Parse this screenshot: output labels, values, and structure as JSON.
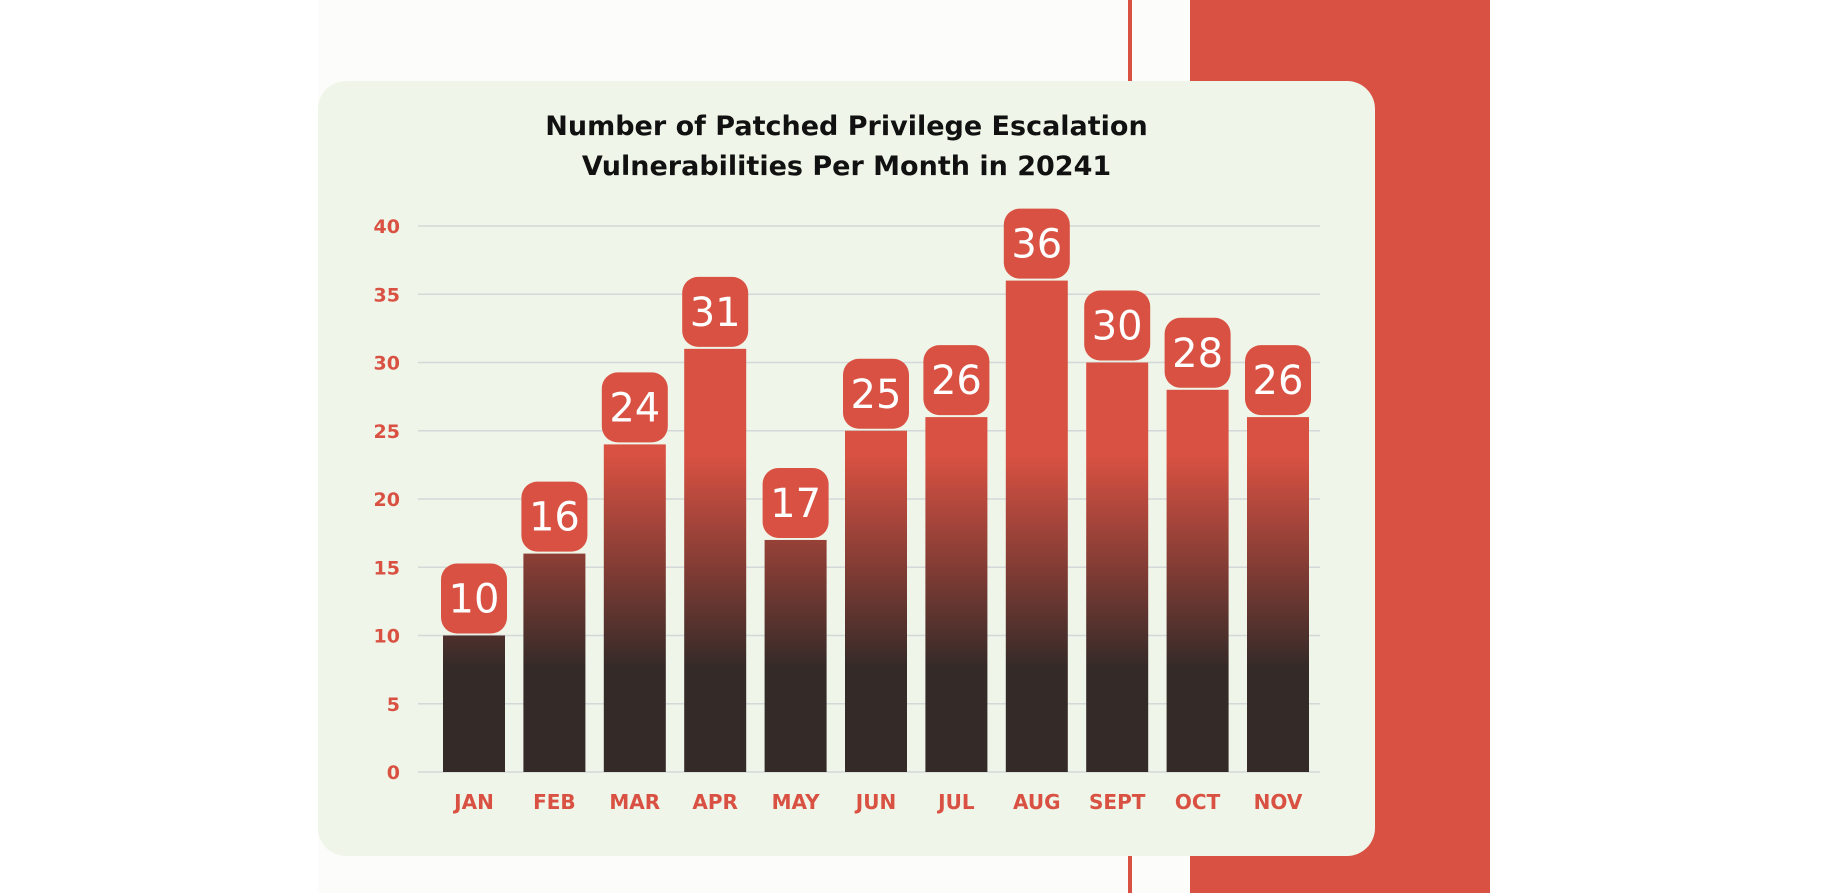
{
  "colors": {
    "accent": "#d95142",
    "bar_top": "#d95142",
    "bar_bottom": "#342a28",
    "card_bg": "#eff5e8",
    "label_badge": "#d95142",
    "axis_label": "#d95142",
    "gridline": "#d3d9d8"
  },
  "chart_data": {
    "type": "bar",
    "title_lines": [
      "Number of Patched Privilege Escalation",
      "Vulnerabilities Per Month in 20241"
    ],
    "categories": [
      "JAN",
      "FEB",
      "MAR",
      "APR",
      "MAY",
      "JUN",
      "JUL",
      "AUG",
      "SEPT",
      "OCT",
      "NOV"
    ],
    "values": [
      10,
      16,
      24,
      31,
      17,
      25,
      26,
      36,
      30,
      28,
      26
    ],
    "value_labels": [
      "10",
      "16",
      "24",
      "31",
      "17",
      "25",
      "26",
      "36",
      "30",
      "28",
      "26"
    ],
    "y_ticks": [
      "0",
      "5",
      "10",
      "15",
      "20",
      "25",
      "30",
      "35",
      "40"
    ],
    "ylim": [
      0,
      40
    ],
    "xlabel": "",
    "ylabel": "",
    "grid": true,
    "legend": false
  }
}
